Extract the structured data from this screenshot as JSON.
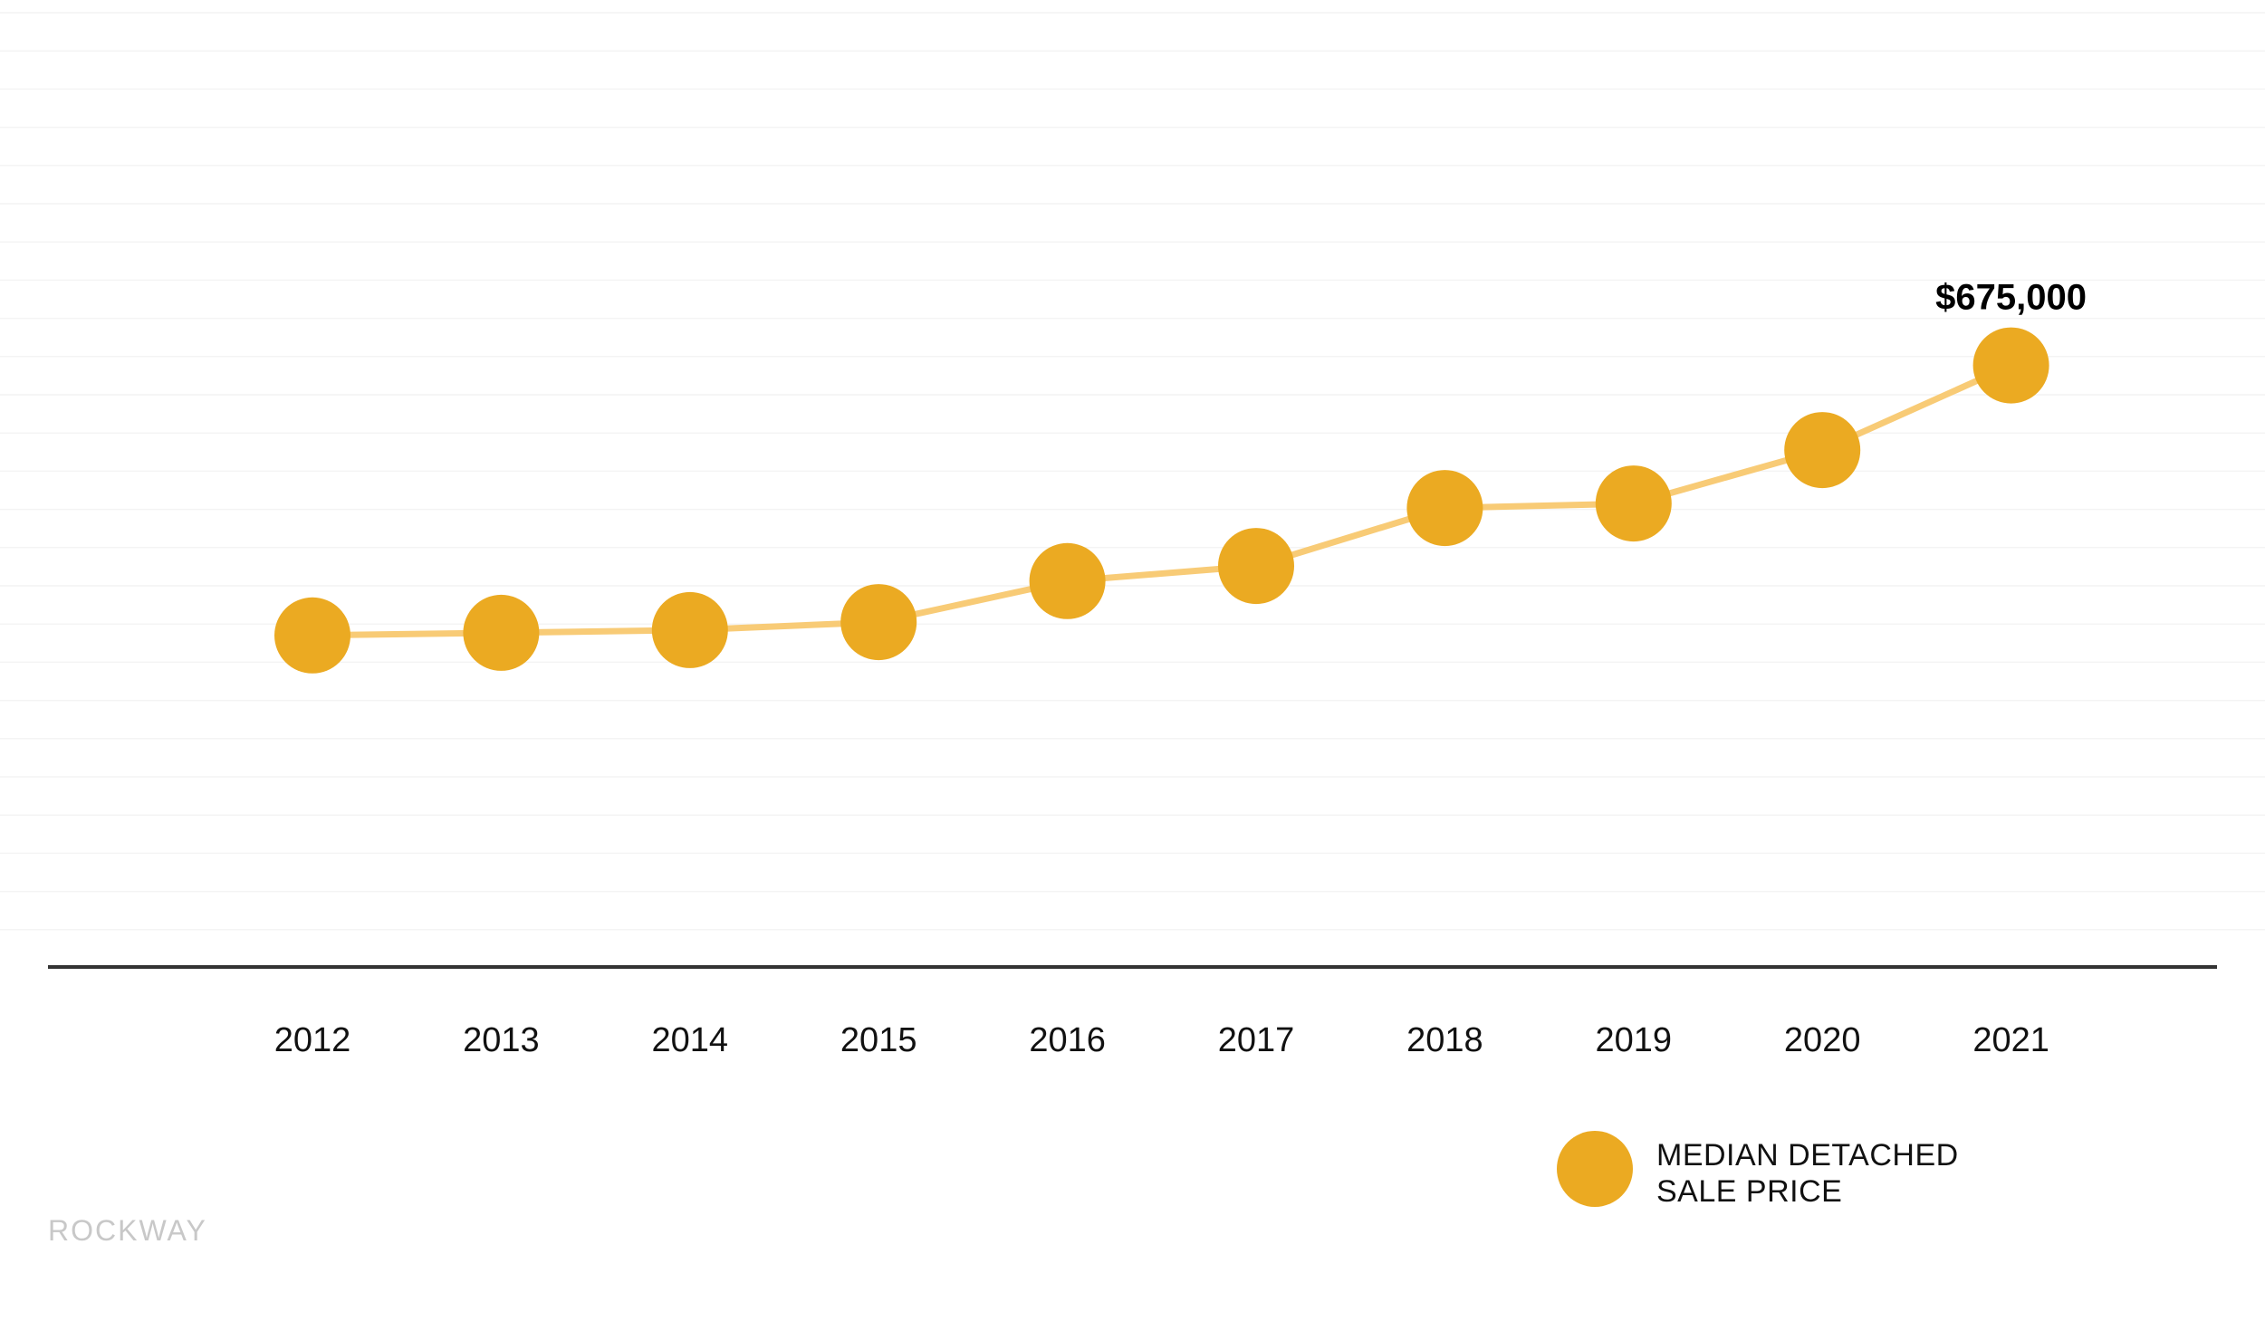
{
  "chart_data": {
    "type": "line",
    "categories": [
      "2012",
      "2013",
      "2014",
      "2015",
      "2016",
      "2017",
      "2018",
      "2019",
      "2020",
      "2021"
    ],
    "series": [
      {
        "name": "MEDIAN DETACHED SALE PRICE",
        "values": [
          372000,
          375000,
          378000,
          387000,
          433000,
          450000,
          515000,
          520000,
          580000,
          675000
        ]
      }
    ],
    "annotations": [
      {
        "category": "2021",
        "text": "$675,000"
      }
    ],
    "legend": {
      "position": "bottom-right",
      "lines": [
        "MEDIAN DETACHED",
        "SALE PRICE"
      ]
    },
    "ylim": [
      0,
      1085000
    ],
    "grid": true,
    "title": "",
    "xlabel": "",
    "ylabel": ""
  },
  "brand": "ROCKWAY",
  "colors": {
    "marker": "#EBAA22",
    "line": "#F8CB76",
    "axis": "#333333",
    "grid": "#F4F4F4",
    "brand": "#C8C8C8"
  }
}
